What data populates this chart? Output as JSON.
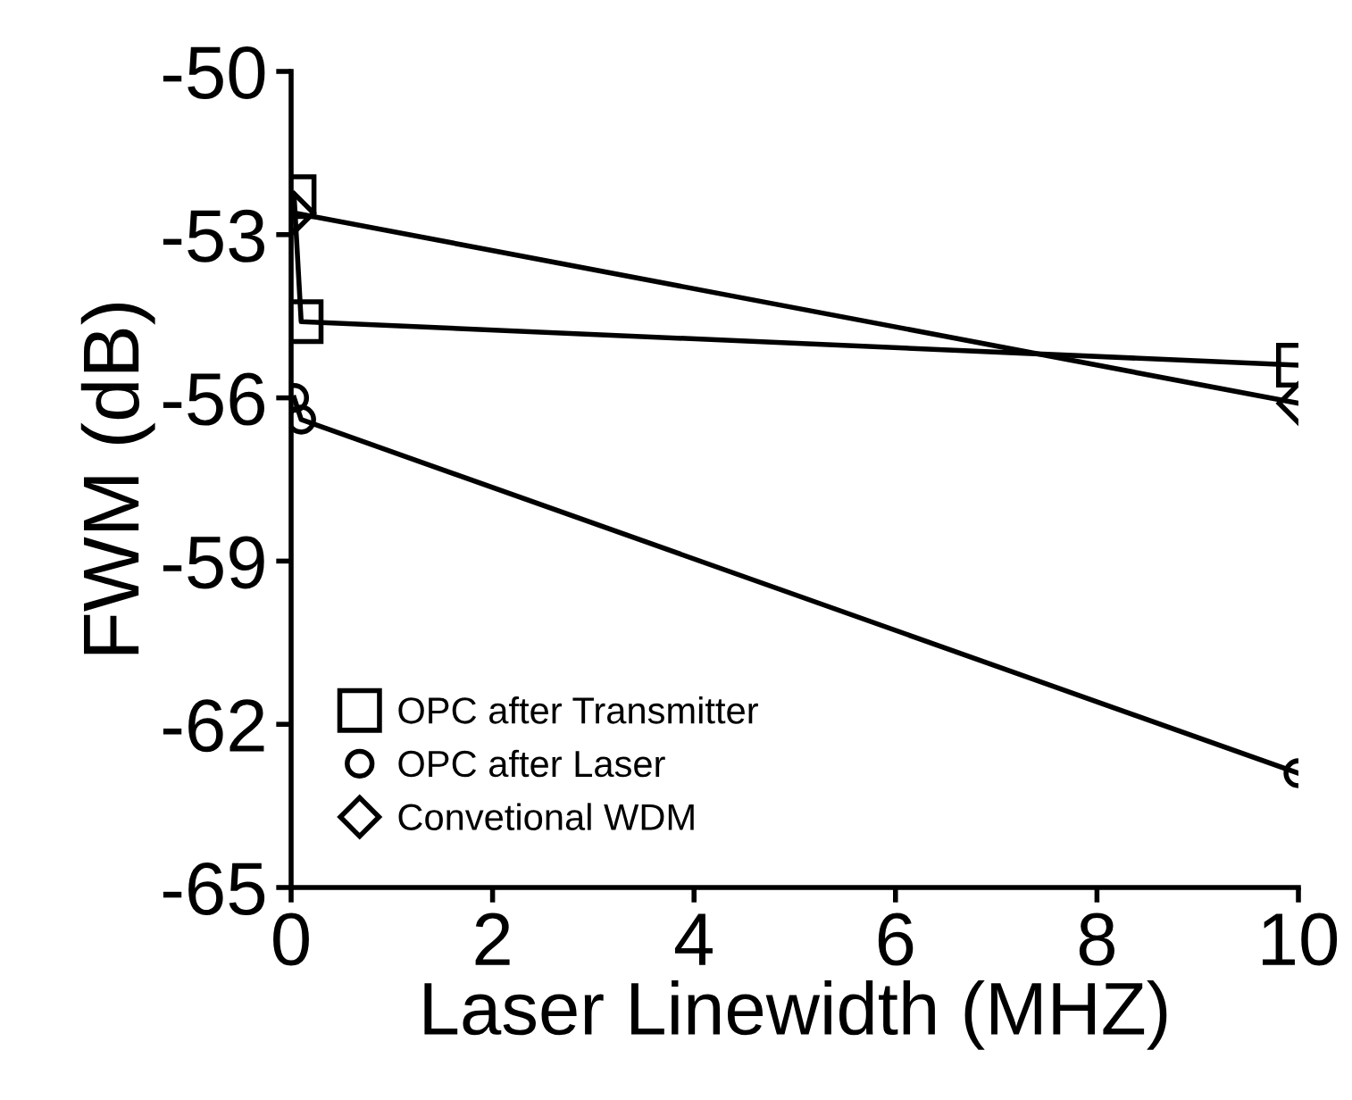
{
  "chart_data": {
    "type": "line",
    "xlabel": "Laser Linewidth (MHZ)",
    "ylabel": "FWM (dB)",
    "xlim": [
      0,
      10
    ],
    "xticks": [
      0,
      2,
      4,
      6,
      8,
      10
    ],
    "ylim": [
      -65,
      -50
    ],
    "yticks": [
      -65,
      -62,
      -59,
      -56,
      -53,
      -50
    ],
    "grid": false,
    "legend": "bottom left",
    "series": [
      {
        "name": "OPC after Transmitter",
        "color": "#000000",
        "marker": "square",
        "x": [
          0.03,
          0.1,
          10
        ],
        "values": [
          -52.3,
          -54.6,
          -55.4
        ]
      },
      {
        "name": "OPC after Laser",
        "color": "#000000",
        "marker": "circle",
        "x": [
          0.03,
          0.1,
          10
        ],
        "values": [
          -56.0,
          -56.4,
          -62.9
        ]
      },
      {
        "name": "Convetional WDM",
        "color": "#000000",
        "marker": "diamond",
        "x": [
          0.03,
          10
        ],
        "values": [
          -52.6,
          -56.1
        ]
      }
    ]
  }
}
